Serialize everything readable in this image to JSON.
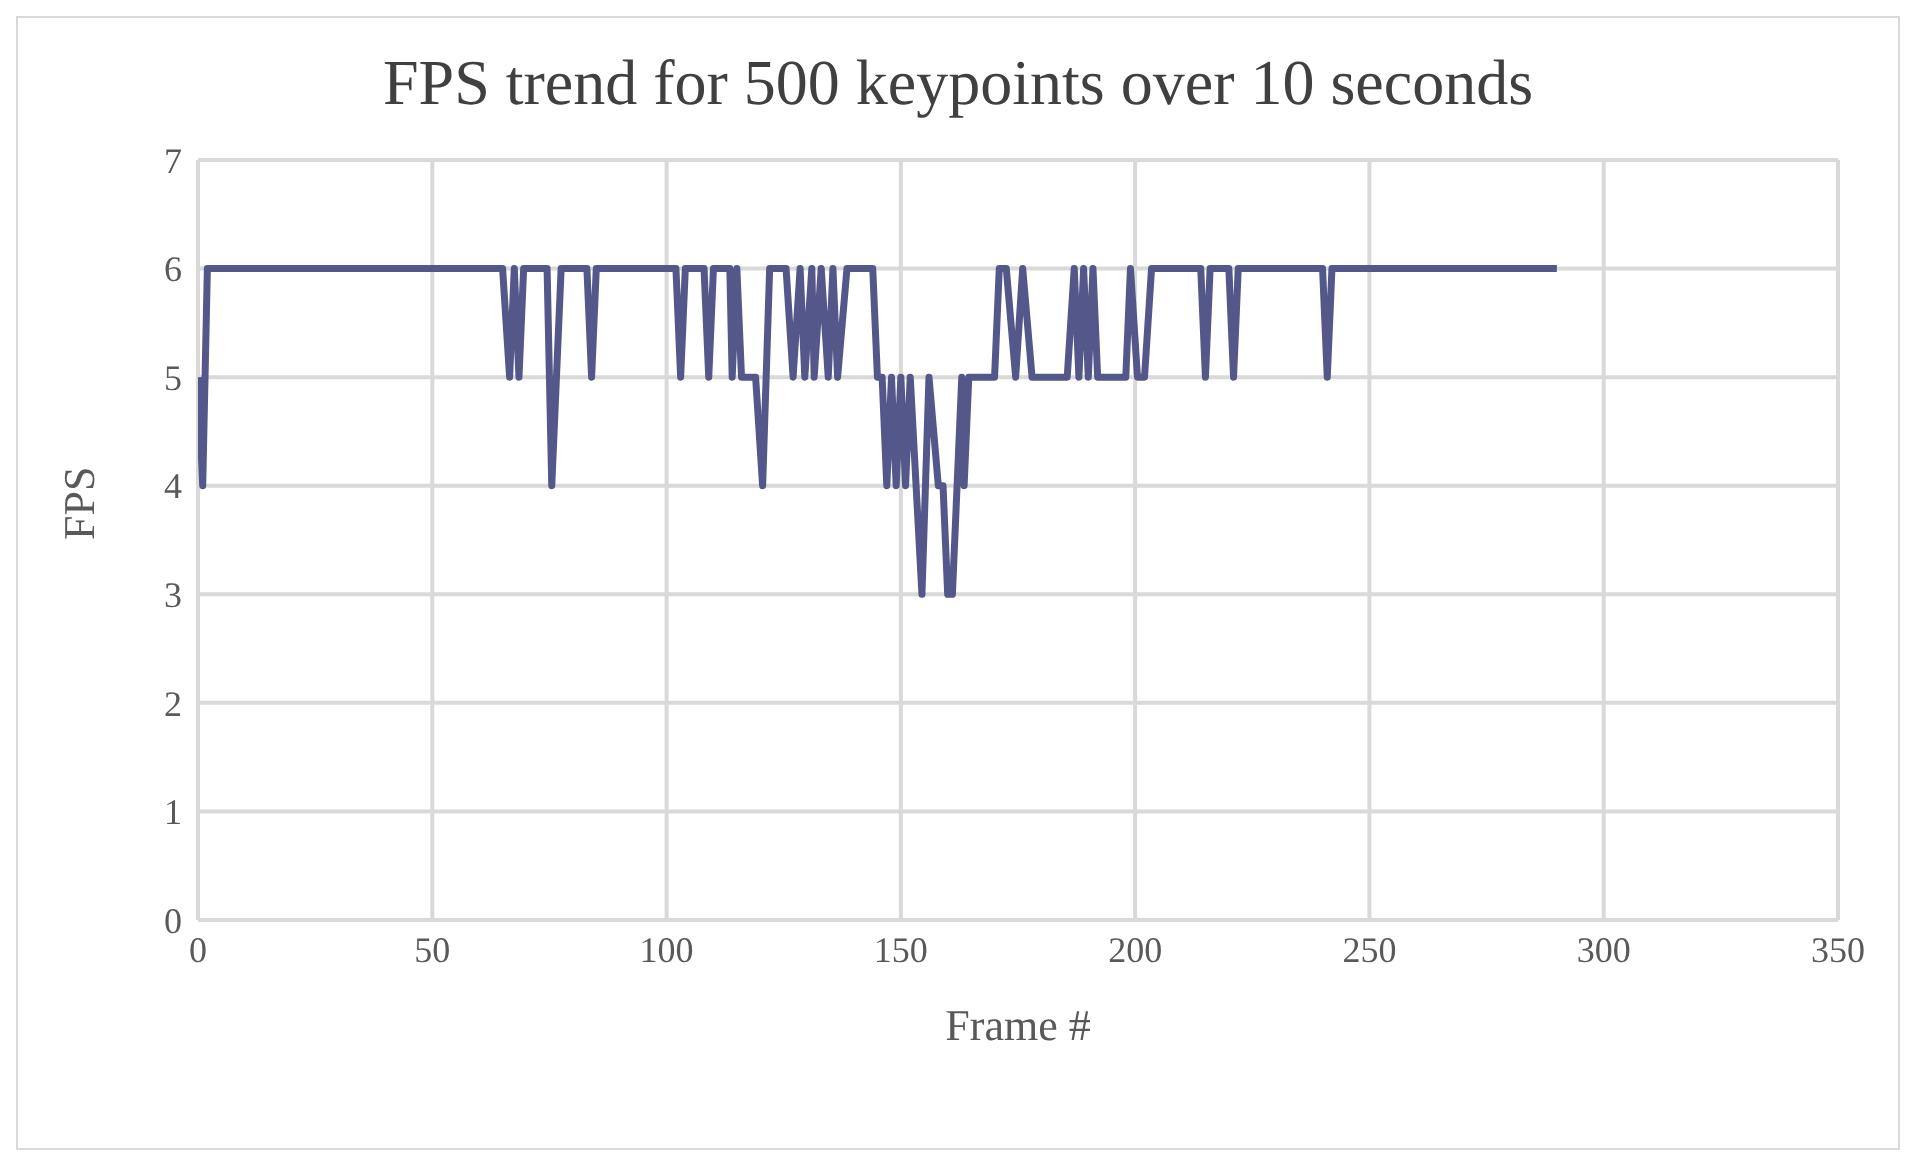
{
  "chart_data": {
    "type": "line",
    "title": "FPS trend for 500 keypoints over 10 seconds",
    "xlabel": "Frame #",
    "ylabel": "FPS",
    "x": [
      0,
      1,
      2,
      65,
      66.5,
      67.5,
      68.5,
      69.5,
      74.5,
      75.5,
      76.5,
      77.5,
      83,
      84,
      85,
      102,
      103,
      104,
      108,
      109,
      110,
      113.5,
      114,
      115,
      116,
      119,
      120.5,
      122,
      125.5,
      127,
      128.5,
      129.5,
      131,
      131.5,
      133,
      134.5,
      135.5,
      136.5,
      138.5,
      144,
      145,
      146,
      147,
      148,
      149,
      150,
      151,
      152,
      154.5,
      156,
      158,
      159,
      160,
      161,
      163,
      163.5,
      164.5,
      170,
      171,
      172.5,
      174.5,
      176,
      178,
      185.5,
      187,
      188,
      189,
      190,
      191,
      192,
      198,
      199,
      200.5,
      202,
      203.5,
      214,
      215,
      216,
      220,
      221,
      222,
      240,
      241,
      242,
      290
    ],
    "series": [
      {
        "color": "#545789",
        "values": [
          5,
          4,
          6,
          6,
          5,
          6,
          5,
          6,
          6,
          4,
          5,
          6,
          6,
          5,
          6,
          6,
          5,
          6,
          6,
          5,
          6,
          6,
          5,
          6,
          5,
          5,
          4,
          6,
          6,
          5,
          6,
          5,
          6,
          5,
          6,
          5,
          6,
          5,
          6,
          6,
          5,
          5,
          4,
          5,
          4,
          5,
          4,
          5,
          3,
          5,
          4,
          4,
          3,
          3,
          5,
          4,
          5,
          5,
          6,
          6,
          5,
          6,
          5,
          5,
          6,
          5,
          6,
          5,
          6,
          5,
          5,
          6,
          5,
          5,
          6,
          6,
          5,
          6,
          6,
          5,
          6,
          6,
          5,
          6,
          6
        ]
      }
    ],
    "xlim": [
      0,
      350
    ],
    "xticks": [
      0,
      50,
      100,
      150,
      200,
      250,
      300,
      350
    ],
    "ylim": [
      0,
      7
    ],
    "yticks": [
      0,
      1,
      2,
      3,
      4,
      5,
      6,
      7
    ],
    "grid": true,
    "marker": "none",
    "line_style": "solid"
  }
}
